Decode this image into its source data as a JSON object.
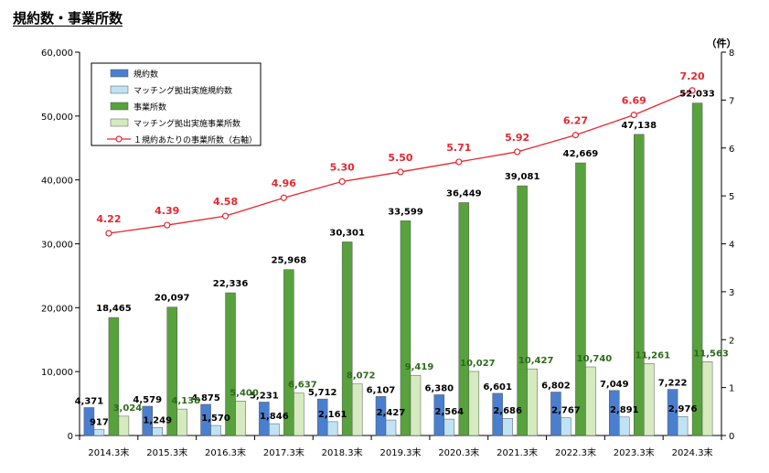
{
  "title": "規約数・事業所数",
  "colors": {
    "kiyaku": "#4a7fd0",
    "matching_kiyaku": "#bfe3f4",
    "jigyosho": "#57a23c",
    "matching_jigyosho": "#d5ebbf",
    "ratio": "#e8262f",
    "ratio_label": "#e8262f"
  },
  "chart_data": {
    "type": "bar",
    "categories": [
      "2014.3末",
      "2015.3末",
      "2016.3末",
      "2017.3末",
      "2018.3末",
      "2019.3末",
      "2020.3末",
      "2021.3末",
      "2022.3末",
      "2023.3末",
      "2024.3末"
    ],
    "series": [
      {
        "name": "規約数",
        "values": [
          4371,
          4579,
          4875,
          5231,
          5712,
          6107,
          6380,
          6601,
          6802,
          7049,
          7222
        ],
        "value_labels": [
          "4,371",
          "4,579",
          "4,875",
          "5,231",
          "5,712",
          "6,107",
          "6,380",
          "6,601",
          "6,802",
          "7,049",
          "7,222"
        ]
      },
      {
        "name": "マッチング拠出実施規約数",
        "values": [
          917,
          1249,
          1570,
          1846,
          2161,
          2427,
          2564,
          2686,
          2767,
          2891,
          2976
        ],
        "value_labels": [
          "917",
          "1,249",
          "1,570",
          "1,846",
          "2,161",
          "2,427",
          "2,564",
          "2,686",
          "2,767",
          "2,891",
          "2,976"
        ]
      },
      {
        "name": "事業所数",
        "values": [
          18465,
          20097,
          22336,
          25968,
          30301,
          33599,
          36449,
          39081,
          42669,
          47138,
          52033
        ],
        "value_labels": [
          "18,465",
          "20,097",
          "22,336",
          "25,968",
          "30,301",
          "33,599",
          "36,449",
          "39,081",
          "42,669",
          "47,138",
          "52,033"
        ]
      },
      {
        "name": "マッチング拠出実施事業所数",
        "values": [
          3024,
          4138,
          5400,
          6637,
          8072,
          9419,
          10027,
          10427,
          10740,
          11261,
          11563
        ],
        "value_labels": [
          "3,024",
          "4,138",
          "5,400",
          "6,637",
          "8,072",
          "9,419",
          "10,027",
          "10,427",
          "10,740",
          "11,261",
          "11,563"
        ]
      },
      {
        "name": "１規約あたりの事業所数（右軸）",
        "type": "line",
        "axis": "right",
        "values": [
          4.22,
          4.39,
          4.58,
          4.96,
          5.3,
          5.5,
          5.71,
          5.92,
          6.27,
          6.69,
          7.2
        ],
        "value_labels": [
          "4.22",
          "4.39",
          "4.58",
          "4.96",
          "5.30",
          "5.50",
          "5.71",
          "5.92",
          "6.27",
          "6.69",
          "7.20"
        ]
      }
    ],
    "left_axis": {
      "ylim": [
        0,
        60000
      ],
      "ticks": [
        "0",
        "10,000",
        "20,000",
        "30,000",
        "40,000",
        "50,000",
        "60,000"
      ]
    },
    "right_axis": {
      "ylim": [
        0,
        8
      ],
      "ticks": [
        "0",
        "1",
        "2",
        "3",
        "4",
        "5",
        "6",
        "7",
        "8"
      ],
      "unit": "（件）"
    },
    "grid": false,
    "legend_position": "top-left"
  }
}
